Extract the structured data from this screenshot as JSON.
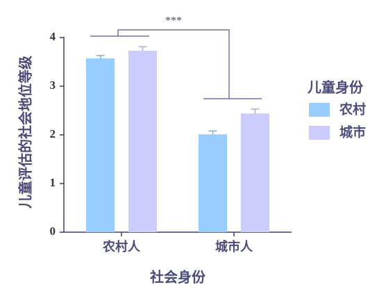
{
  "chart_data": {
    "type": "bar",
    "y_label": "儿童评估的社会地位等级",
    "x_label": "社会身份",
    "annotation": "***",
    "legend_title": "儿童身份",
    "categories": [
      "农村人",
      "城市人"
    ],
    "series": [
      {
        "name": "农村",
        "color": "#99ccff",
        "values": [
          3.57,
          2.01
        ],
        "errors": [
          0.06,
          0.07
        ]
      },
      {
        "name": "城市",
        "color": "#ccccff",
        "values": [
          3.73,
          2.44
        ],
        "errors": [
          0.08,
          0.09
        ]
      }
    ],
    "ylim": [
      0,
      4
    ],
    "yticks": [
      0,
      1,
      2,
      3,
      4
    ],
    "legend": "right"
  }
}
